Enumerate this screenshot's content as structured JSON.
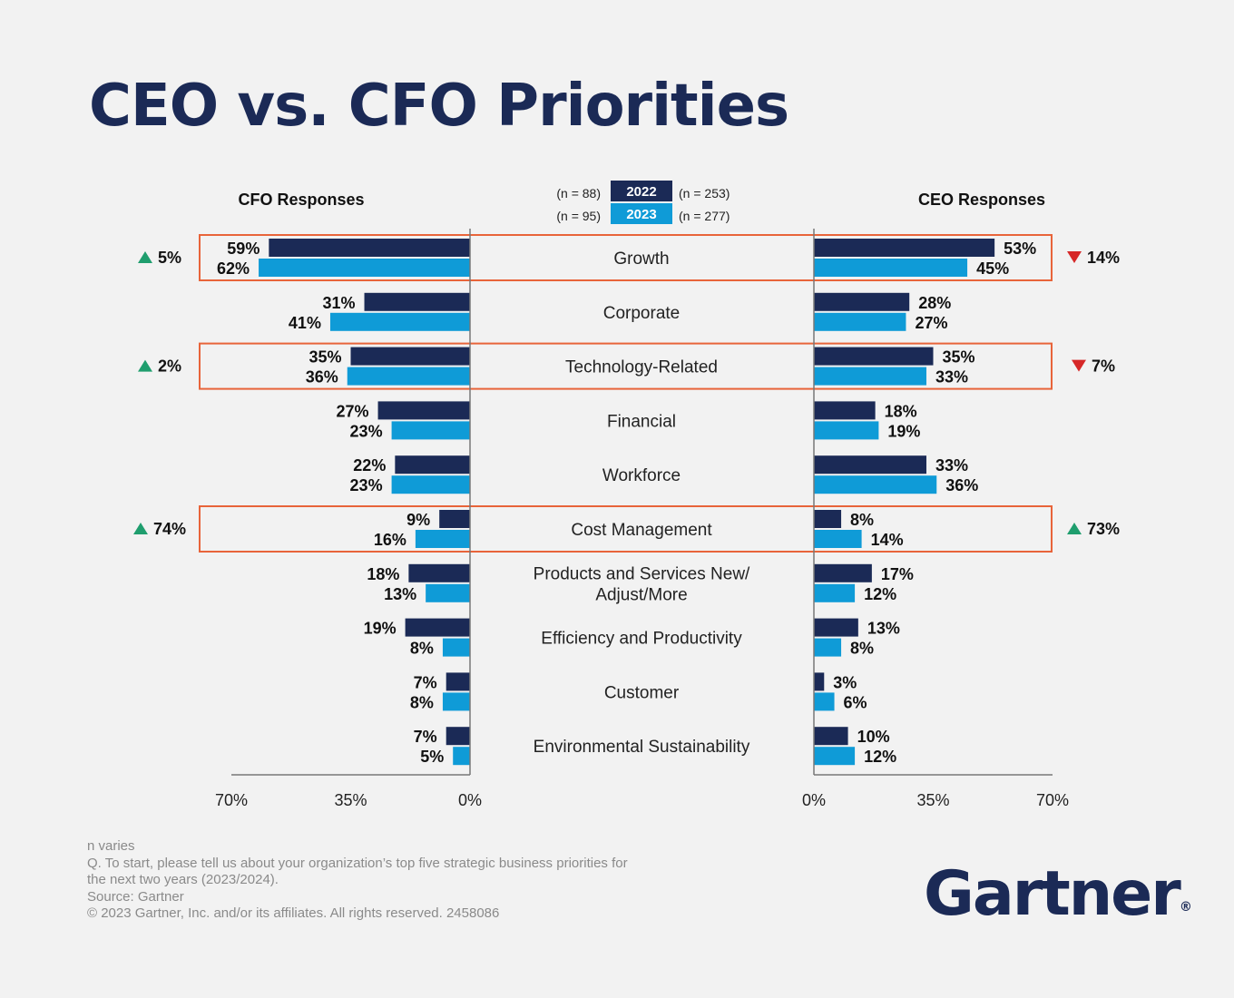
{
  "title": "CEO vs. CFO Priorities",
  "chart_data": {
    "type": "bar",
    "layout": "butterfly",
    "left_panel_label": "CFO Responses",
    "right_panel_label": "CEO Responses",
    "legend": [
      {
        "series": "2022",
        "cfo_n": "(n = 88)",
        "ceo_n": "(n = 253)",
        "color": "#1b2a56"
      },
      {
        "series": "2023",
        "cfo_n": "(n = 95)",
        "ceo_n": "(n = 277)",
        "color": "#0f9bd7"
      }
    ],
    "categories": [
      "Growth",
      "Corporate",
      "Technology-Related",
      "Financial",
      "Workforce",
      "Cost Management",
      "Products and Services New/\nAdjust/More",
      "Efficiency and Productivity",
      "Customer",
      "Environmental Sustainability"
    ],
    "series": [
      {
        "name": "2022",
        "panel": "CFO Responses",
        "values": [
          59,
          31,
          35,
          27,
          22,
          9,
          18,
          19,
          7,
          7
        ]
      },
      {
        "name": "2023",
        "panel": "CFO Responses",
        "values": [
          62,
          41,
          36,
          23,
          23,
          16,
          13,
          8,
          8,
          5
        ]
      },
      {
        "name": "2022",
        "panel": "CEO Responses",
        "values": [
          53,
          28,
          35,
          18,
          33,
          8,
          17,
          13,
          3,
          10
        ]
      },
      {
        "name": "2023",
        "panel": "CEO Responses",
        "values": [
          45,
          27,
          33,
          19,
          36,
          14,
          12,
          8,
          6,
          12
        ]
      }
    ],
    "xlim": [
      0,
      70
    ],
    "left_ticks": [
      "70%",
      "35%",
      "0%"
    ],
    "right_ticks": [
      "0%",
      "35%",
      "70%"
    ],
    "highlighted_categories": [
      "Growth",
      "Technology-Related",
      "Cost Management"
    ],
    "changes": [
      {
        "category": "Growth",
        "cfo": {
          "direction": "up",
          "label": "5%"
        },
        "ceo": {
          "direction": "down",
          "label": "14%"
        }
      },
      {
        "category": "Technology-Related",
        "cfo": {
          "direction": "up",
          "label": "2%"
        },
        "ceo": {
          "direction": "down",
          "label": "7%"
        }
      },
      {
        "category": "Cost Management",
        "cfo": {
          "direction": "up",
          "label": "74%"
        },
        "ceo": {
          "direction": "up",
          "label": "73%"
        }
      }
    ],
    "colors": {
      "series_2022": "#1b2a56",
      "series_2023": "#0f9bd7",
      "highlight_box": "#e8643a",
      "up_arrow": "#1f9e6e",
      "down_arrow": "#d62828"
    }
  },
  "footnotes": [
    "n varies",
    "Q. To start, please tell us about your organization’s top five strategic business priorities for\nthe next two years (2023/2024).",
    "Source: Gartner",
    "© 2023 Gartner, Inc. and/or its affiliates. All rights reserved. 2458086"
  ],
  "brand": {
    "name": "Gartner",
    "mark": "®"
  }
}
